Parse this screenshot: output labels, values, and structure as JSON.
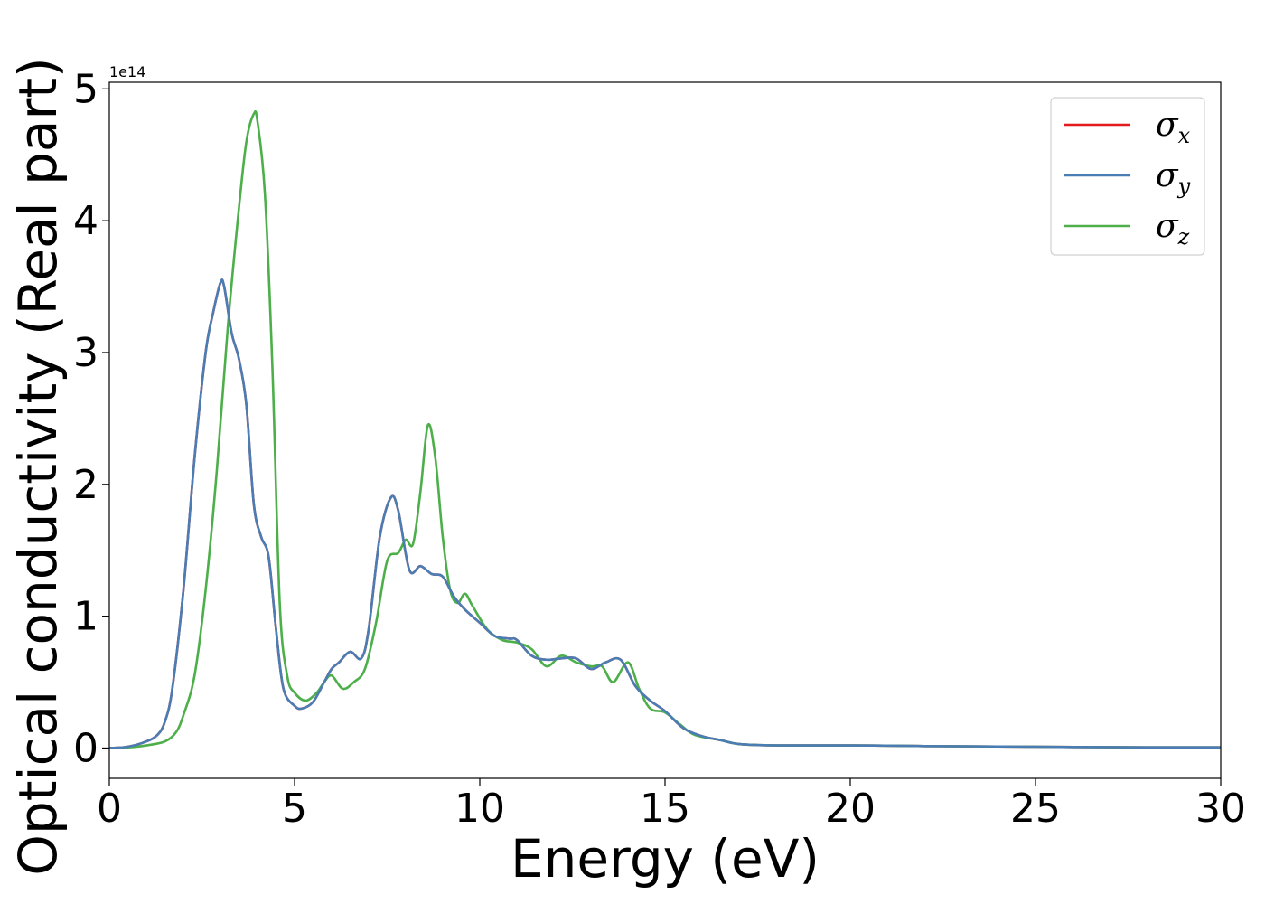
{
  "chart_data": {
    "type": "line",
    "title": "",
    "xlabel": "Energy (eV)",
    "ylabel": "Optical conductivity (Real part)",
    "y_offset_text": "1e14",
    "xlim": [
      0,
      30
    ],
    "ylim": [
      -0.23,
      5.05
    ],
    "xticks": [
      0,
      5,
      10,
      15,
      20,
      25,
      30
    ],
    "yticks": [
      0,
      1,
      2,
      3,
      4,
      5
    ],
    "grid": false,
    "legend_position": "top-right",
    "series": [
      {
        "name": "σx",
        "legend_base": "σ",
        "legend_sub": "x",
        "color": "#e41a1c",
        "x": [
          0,
          0.5,
          1.0,
          1.3,
          1.5,
          1.7,
          2.0,
          2.3,
          2.6,
          2.8,
          3.0,
          3.1,
          3.3,
          3.5,
          3.7,
          3.9,
          4.1,
          4.3,
          4.5,
          4.7,
          5.0,
          5.2,
          5.5,
          5.8,
          6.0,
          6.2,
          6.5,
          6.8,
          7.0,
          7.3,
          7.6,
          7.8,
          8.1,
          8.4,
          8.7,
          9.0,
          9.3,
          9.6,
          10.0,
          10.4,
          10.8,
          11.0,
          11.4,
          11.8,
          12.2,
          12.6,
          13.0,
          13.4,
          13.8,
          14.2,
          14.6,
          15.0,
          15.5,
          16.0,
          16.5,
          17.0,
          18.0,
          20.0,
          22.0,
          25.0,
          28.0,
          30.0
        ],
        "y": [
          0,
          0.01,
          0.05,
          0.1,
          0.2,
          0.45,
          1.2,
          2.2,
          3.0,
          3.3,
          3.53,
          3.5,
          3.15,
          2.95,
          2.6,
          1.85,
          1.6,
          1.45,
          0.9,
          0.45,
          0.32,
          0.3,
          0.35,
          0.5,
          0.6,
          0.65,
          0.73,
          0.68,
          0.9,
          1.6,
          1.9,
          1.8,
          1.35,
          1.38,
          1.32,
          1.3,
          1.15,
          1.05,
          0.95,
          0.85,
          0.83,
          0.82,
          0.7,
          0.67,
          0.68,
          0.68,
          0.6,
          0.65,
          0.67,
          0.47,
          0.36,
          0.28,
          0.15,
          0.09,
          0.06,
          0.03,
          0.02,
          0.02,
          0.015,
          0.01,
          0.005,
          0.005
        ]
      },
      {
        "name": "σy",
        "legend_base": "σ",
        "legend_sub": "y",
        "color": "#4a7db4",
        "x": [
          0,
          0.5,
          1.0,
          1.3,
          1.5,
          1.7,
          2.0,
          2.3,
          2.6,
          2.8,
          3.0,
          3.1,
          3.3,
          3.5,
          3.7,
          3.9,
          4.1,
          4.3,
          4.5,
          4.7,
          5.0,
          5.2,
          5.5,
          5.8,
          6.0,
          6.2,
          6.5,
          6.8,
          7.0,
          7.3,
          7.6,
          7.8,
          8.1,
          8.4,
          8.7,
          9.0,
          9.3,
          9.6,
          10.0,
          10.4,
          10.8,
          11.0,
          11.4,
          11.8,
          12.2,
          12.6,
          13.0,
          13.4,
          13.8,
          14.2,
          14.6,
          15.0,
          15.5,
          16.0,
          16.5,
          17.0,
          18.0,
          20.0,
          22.0,
          25.0,
          28.0,
          30.0
        ],
        "y": [
          0,
          0.01,
          0.05,
          0.1,
          0.2,
          0.45,
          1.2,
          2.2,
          3.0,
          3.3,
          3.53,
          3.5,
          3.15,
          2.95,
          2.6,
          1.85,
          1.6,
          1.45,
          0.9,
          0.45,
          0.32,
          0.3,
          0.35,
          0.5,
          0.6,
          0.65,
          0.73,
          0.68,
          0.9,
          1.6,
          1.9,
          1.8,
          1.35,
          1.38,
          1.32,
          1.3,
          1.15,
          1.05,
          0.95,
          0.85,
          0.83,
          0.82,
          0.7,
          0.67,
          0.68,
          0.68,
          0.6,
          0.65,
          0.67,
          0.47,
          0.36,
          0.28,
          0.15,
          0.09,
          0.06,
          0.03,
          0.02,
          0.02,
          0.015,
          0.01,
          0.005,
          0.005
        ]
      },
      {
        "name": "σz",
        "legend_base": "σ",
        "legend_sub": "z",
        "color": "#4daf4a",
        "x": [
          0,
          0.5,
          1.0,
          1.5,
          1.8,
          2.0,
          2.3,
          2.6,
          2.9,
          3.2,
          3.5,
          3.7,
          3.9,
          4.0,
          4.2,
          4.4,
          4.6,
          4.8,
          5.0,
          5.3,
          5.6,
          5.8,
          6.0,
          6.3,
          6.6,
          6.9,
          7.2,
          7.5,
          7.8,
          8.0,
          8.2,
          8.4,
          8.6,
          8.8,
          9.0,
          9.2,
          9.4,
          9.6,
          9.8,
          10.2,
          10.6,
          11.0,
          11.4,
          11.8,
          12.2,
          12.6,
          13.0,
          13.3,
          13.6,
          14.0,
          14.3,
          14.6,
          15.0,
          15.4,
          15.8,
          16.5,
          17.0,
          18.0,
          20.0,
          22.0,
          25.0,
          28.0,
          30.0
        ],
        "y": [
          0,
          0.005,
          0.02,
          0.05,
          0.12,
          0.25,
          0.55,
          1.2,
          2.1,
          3.2,
          4.1,
          4.6,
          4.81,
          4.75,
          4.2,
          2.9,
          1.1,
          0.55,
          0.42,
          0.36,
          0.42,
          0.5,
          0.55,
          0.45,
          0.5,
          0.6,
          0.95,
          1.42,
          1.48,
          1.58,
          1.55,
          1.95,
          2.45,
          2.2,
          1.6,
          1.2,
          1.1,
          1.17,
          1.08,
          0.9,
          0.82,
          0.8,
          0.75,
          0.62,
          0.7,
          0.65,
          0.62,
          0.62,
          0.5,
          0.65,
          0.45,
          0.3,
          0.27,
          0.18,
          0.1,
          0.06,
          0.03,
          0.02,
          0.02,
          0.015,
          0.01,
          0.005,
          0.005
        ]
      }
    ]
  }
}
